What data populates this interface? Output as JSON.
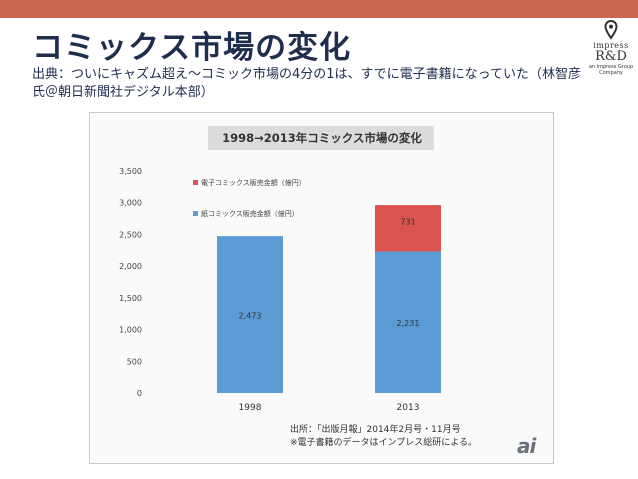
{
  "slide": {
    "title": "コミックス市場の変化",
    "subtitle": "出典：ついにキャズム超え〜コミック市場の4分の1は、すでに電子書籍になっていた（林智彦氏＠朝日新聞社デジタル本部）"
  },
  "logo": {
    "line1": "impress",
    "line2": "R&D",
    "line3": "an impress Group Company"
  },
  "source": {
    "line1": "出所：「出版月報」2014年2月号・11月号",
    "line2": "※電子書籍のデータはインプレス総研による。"
  },
  "watermark": "ai",
  "colors": {
    "accent": "#c8694d",
    "paper_bar": "#5b9bd5",
    "ebook_bar": "#d9534f",
    "title_text": "#1f2d4e"
  },
  "chart_data": {
    "type": "bar",
    "stacked": true,
    "title": "1998→2013年コミックス市場の変化",
    "categories": [
      "1998",
      "2013"
    ],
    "series": [
      {
        "name": "紙コミックス販売金額（億円）",
        "values": [
          2473,
          2231
        ],
        "color": "#5b9bd5"
      },
      {
        "name": "電子コミックス販売金額（億円）",
        "values": [
          0,
          731
        ],
        "color": "#d9534f"
      }
    ],
    "data_labels": [
      [
        "2,473",
        "2,231"
      ],
      [
        "",
        "731"
      ]
    ],
    "ylim": [
      0,
      3500
    ],
    "yticks": [
      0,
      500,
      1000,
      1500,
      2000,
      2500,
      3000,
      3500
    ],
    "ytick_labels": [
      "0",
      "500",
      "1,000",
      "1,500",
      "2,000",
      "2,500",
      "3,000",
      "3,500"
    ],
    "legend_position": "top-left",
    "grid": false
  }
}
